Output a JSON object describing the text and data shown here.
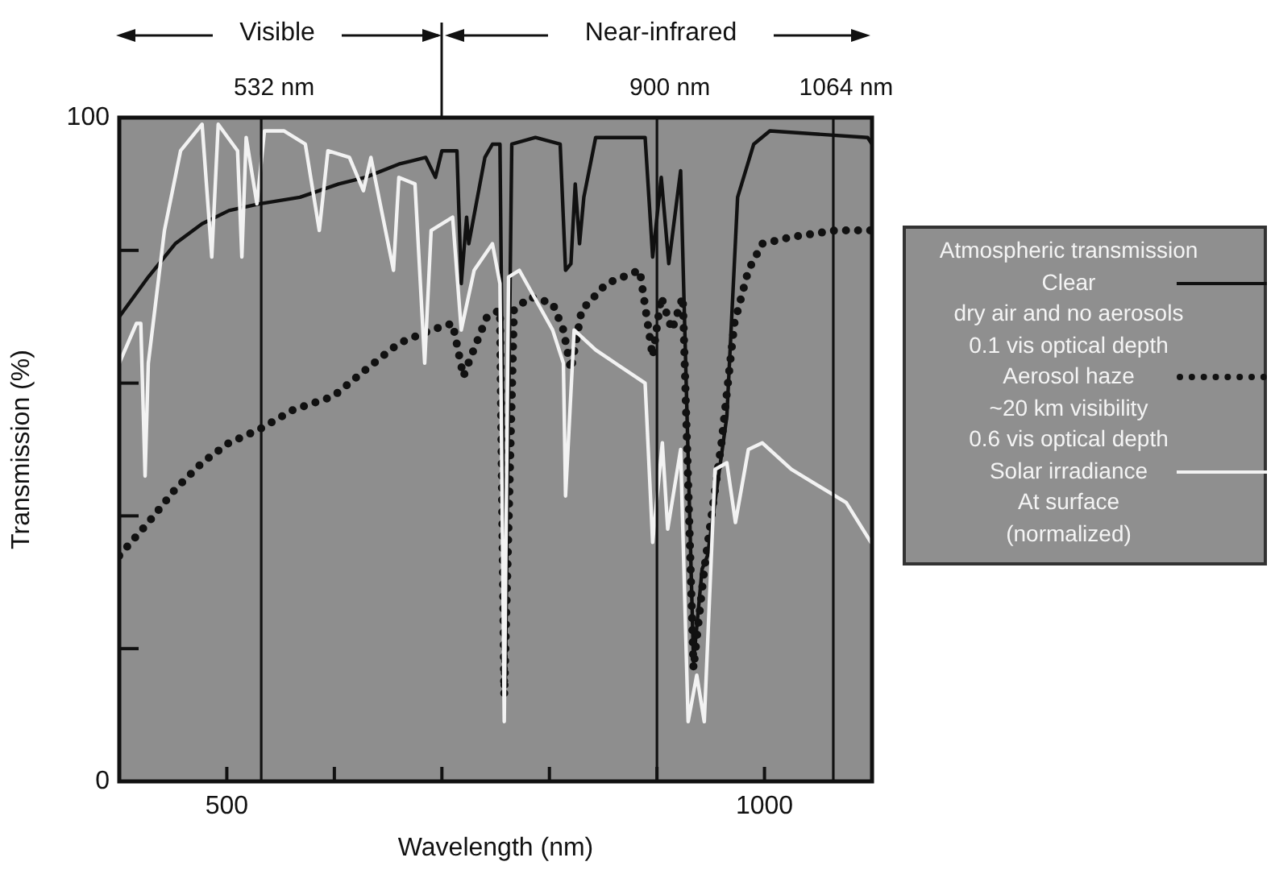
{
  "chart_data": {
    "type": "line",
    "xlabel": "Wavelength (nm)",
    "ylabel": "Transmission (%)",
    "legend_title": "Atmospheric transmission",
    "legend": "right",
    "grid": false,
    "xlim": [
      400,
      1100
    ],
    "xticks": [
      500,
      {
        "value": 600,
        "label": null
      },
      {
        "value": 700,
        "label": null
      },
      {
        "value": 800,
        "label": null
      },
      {
        "value": 900,
        "label": null
      },
      1000
    ],
    "ylim": [
      0,
      100
    ],
    "yticks": [
      0,
      {
        "value": 20,
        "label": null
      },
      {
        "value": 40,
        "label": null
      },
      {
        "value": 60,
        "label": null
      },
      {
        "value": 80,
        "label": null
      },
      100
    ],
    "ref_lines": [
      {
        "axis": "x",
        "value": 532,
        "label": "532 nm",
        "color": "#111111"
      },
      {
        "axis": "x",
        "value": 900,
        "label": "900 nm",
        "color": "#111111"
      },
      {
        "axis": "x",
        "value": 1064,
        "label": "1064 nm",
        "color": "#111111"
      }
    ],
    "annotations": [
      "Visible",
      "Near-infrared"
    ],
    "series": [
      {
        "name": "Clear\ndry air and no aerosols\n0.1 vis optical depth",
        "color": "#111111",
        "line_style": "solid",
        "x": [
          400,
          427,
          452,
          477,
          502,
          530,
          568,
          604,
          629,
          660,
          685,
          694,
          700,
          714,
          718,
          723,
          725,
          740,
          747,
          754,
          759,
          765,
          787,
          810,
          815,
          820,
          824,
          828,
          832,
          843,
          889,
          896,
          904,
          911,
          922,
          934,
          942,
          947,
          965,
          975,
          990,
          1005,
          1096,
          1100
        ],
        "values": [
          70,
          76,
          81,
          84,
          86,
          87,
          88,
          90,
          91,
          93,
          94,
          91,
          95,
          95,
          75,
          85,
          81,
          94,
          96,
          96,
          15,
          96,
          97,
          96,
          77,
          78,
          90,
          81,
          88,
          97,
          97,
          79,
          91,
          78,
          92,
          18,
          32,
          34,
          55,
          88,
          96,
          98,
          97,
          96
        ]
      },
      {
        "name": "Aerosol haze\n~20 km visibility\n0.6 vis optical depth",
        "color": "#111111",
        "line_style": "dotted",
        "x": [
          400,
          427,
          452,
          477,
          502,
          530,
          562,
          599,
          629,
          660,
          690,
          710,
          720,
          727,
          742,
          754,
          758,
          767,
          782,
          803,
          813,
          820,
          830,
          853,
          884,
          896,
          904,
          914,
          924,
          934,
          944,
          960,
          972,
          985,
          998,
          1025,
          1066,
          1100
        ],
        "values": [
          34,
          39,
          44,
          48,
          51,
          53,
          56,
          58,
          62,
          66,
          68,
          69,
          61,
          64,
          70,
          71,
          13,
          71,
          73,
          72,
          68,
          62,
          71,
          75,
          77,
          64,
          73,
          68,
          73,
          17,
          32,
          51,
          69,
          77,
          81,
          82,
          83,
          83
        ]
      },
      {
        "name": "Solar irradiance\nAt surface\n(normalized)",
        "color": "#f2f2f2",
        "line_style": "solid",
        "x": [
          400,
          416,
          420,
          424,
          427,
          442,
          457,
          477,
          486,
          492,
          510,
          514,
          518,
          528,
          535,
          553,
          573,
          586,
          594,
          614,
          627,
          634,
          655,
          660,
          675,
          684,
          690,
          710,
          718,
          730,
          747,
          754,
          758,
          762,
          772,
          803,
          813,
          815,
          823,
          843,
          889,
          896,
          905,
          910,
          922,
          929,
          937,
          944,
          954,
          965,
          973,
          985,
          998,
          1025,
          1076,
          1099
        ],
        "values": [
          63,
          69,
          69,
          46,
          63,
          83,
          95,
          99,
          79,
          99,
          95,
          79,
          97,
          87,
          98,
          98,
          96,
          83,
          95,
          94,
          89,
          94,
          77,
          91,
          90,
          63,
          83,
          85,
          68,
          77,
          81,
          75,
          9,
          76,
          77,
          68,
          63,
          43,
          68,
          65,
          60,
          36,
          51,
          38,
          50,
          9,
          16,
          9,
          47,
          48,
          39,
          50,
          51,
          47,
          42,
          36
        ]
      }
    ]
  }
}
